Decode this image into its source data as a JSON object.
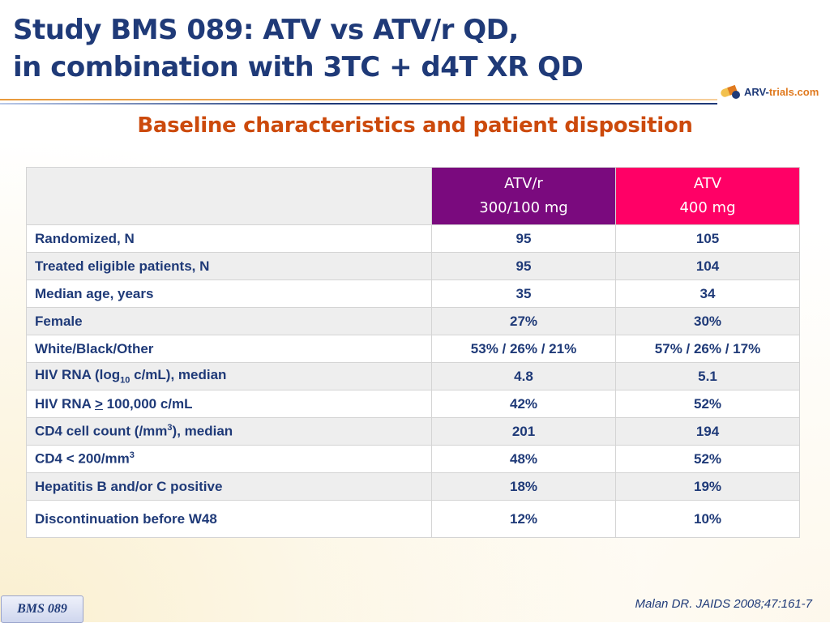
{
  "header": {
    "title_line1": "Study BMS 089: ATV vs ATV/r QD,",
    "title_line2": "in combination with 3TC + d4T XR QD",
    "subtitle": "Baseline characteristics and patient disposition",
    "logo": {
      "part1": "ARV-",
      "part2": "trials",
      "part3": ".com"
    }
  },
  "table": {
    "columns": [
      {
        "line1": "ATV/r",
        "line2": "300/100 mg",
        "color": "#7a0a7e"
      },
      {
        "line1": "ATV",
        "line2": "400 mg",
        "color": "#ff0066"
      }
    ],
    "rows": [
      {
        "label": "Randomized, N",
        "atvr": "95",
        "atv": "105"
      },
      {
        "label": "Treated eligible patients, N",
        "atvr": "95",
        "atv": "104"
      },
      {
        "label": "Median age, years",
        "atvr": "35",
        "atv": "34"
      },
      {
        "label": "Female",
        "atvr": "27%",
        "atv": "30%"
      },
      {
        "label": "White/Black/Other",
        "atvr": "53% / 26% / 21%",
        "atv": "57% / 26% / 17%"
      },
      {
        "label_pre": "HIV RNA (log",
        "label_sub": "10",
        "label_post": " c/mL), median",
        "atvr": "4.8",
        "atv": "5.1"
      },
      {
        "label_pre": "HIV RNA ",
        "label_sym": ">",
        "label_post": " 100,000 c/mL",
        "atvr": "42%",
        "atv": "52%"
      },
      {
        "label_pre": "CD4 cell count (/mm",
        "label_sup": "3",
        "label_post": "), median",
        "atvr": "201",
        "atv": "194"
      },
      {
        "label_pre": "CD4 < 200/mm",
        "label_sup": "3",
        "label_post": "",
        "atvr": "48%",
        "atv": "52%"
      },
      {
        "label": "Hepatitis B and/or C positive",
        "atvr": "18%",
        "atv": "19%"
      },
      {
        "label": "Discontinuation before W48",
        "atvr": "12%",
        "atv": "10%"
      }
    ]
  },
  "footer": {
    "badge": "BMS 089",
    "citation": "Malan DR. JAIDS 2008;47:161-7"
  }
}
